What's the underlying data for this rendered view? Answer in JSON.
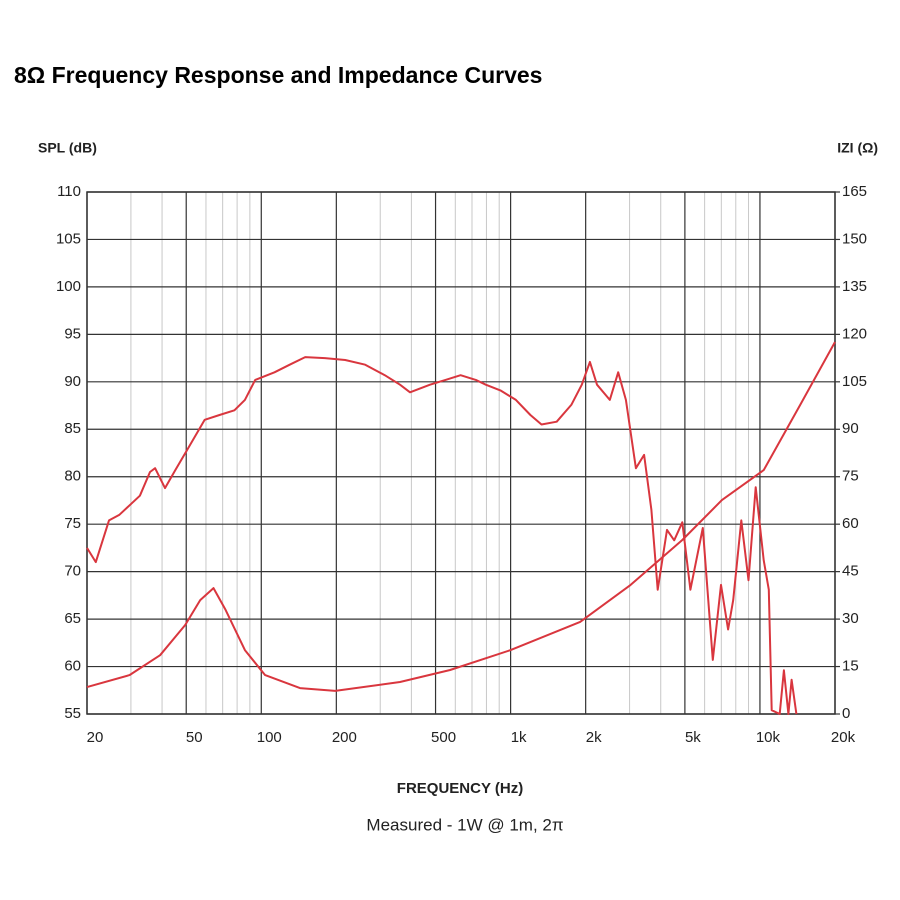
{
  "chart_data": {
    "type": "line",
    "title": "8Ω Frequency Response and Impedance Curves",
    "ylabel": "SPL (dB)",
    "y2label": "IZI (Ω)",
    "xlabel": "FREQUENCY (Hz)",
    "annotation": "Measured - 1W @ 1m, 2π",
    "xscale": "log",
    "grid": true,
    "xlim": [
      20,
      20000
    ],
    "xticks": [
      20,
      50,
      100,
      200,
      500,
      {
        "value": 1000,
        "label": "1k"
      },
      {
        "value": 2000,
        "label": "2k"
      },
      {
        "value": 5000,
        "label": "5k"
      },
      {
        "value": 10000,
        "label": "10k"
      },
      {
        "value": 20000,
        "label": "20k"
      }
    ],
    "xminor_ticks": [
      30,
      40,
      60,
      70,
      80,
      90,
      300,
      400,
      600,
      700,
      800,
      900,
      3000,
      4000,
      6000,
      7000,
      8000,
      9000
    ],
    "ylim": [
      55,
      110
    ],
    "yticks": [
      55,
      60,
      65,
      70,
      75,
      80,
      85,
      90,
      95,
      100,
      105,
      110
    ],
    "y2lim": [
      0,
      165
    ],
    "y2ticks": [
      0,
      15,
      30,
      45,
      60,
      75,
      90,
      105,
      120,
      135,
      150,
      165
    ],
    "series": [
      {
        "color": "#d9363e",
        "x": [
          20,
          21.7,
          24.5,
          27,
          32.6,
          35.8,
          37.5,
          41.1,
          45.2,
          51.7,
          59.3,
          68,
          78,
          86,
          94.5,
          113,
          130,
          150,
          180,
          217,
          261,
          313,
          360,
          395,
          475,
          548,
          630,
          725,
          795,
          910,
          1050,
          1200,
          1330,
          1530,
          1755,
          1930,
          2080,
          2220,
          2500,
          2700,
          2900,
          3180,
          3430,
          3670,
          3890,
          4240,
          4530,
          4880,
          5260,
          5900,
          6470,
          6980,
          7450,
          7810,
          8420,
          9000,
          9620,
          10350,
          10850,
          11150,
          12000,
          12480,
          13000,
          13400,
          14000
        ],
        "values": [
          72.5,
          71,
          75.4,
          76,
          78,
          80.5,
          80.9,
          78.8,
          80.7,
          83.3,
          86,
          86.5,
          87,
          88.1,
          90.2,
          91,
          91.8,
          92.6,
          92.5,
          92.3,
          91.8,
          90.7,
          89.7,
          88.9,
          89.7,
          90.2,
          90.7,
          90.2,
          89.7,
          89.1,
          88.1,
          86.5,
          85.5,
          85.8,
          87.6,
          89.7,
          92.1,
          89.7,
          88.1,
          91,
          88.1,
          80.9,
          82.3,
          76.5,
          68.1,
          74.4,
          73.3,
          75.2,
          68.1,
          74.6,
          60.7,
          68.6,
          63.9,
          67,
          75.4,
          69.1,
          78.9,
          71.2,
          68.1,
          55.4,
          55,
          59.6,
          55,
          58.6,
          55
        ]
      },
      {
        "color": "#d9363e",
        "axis": "y2",
        "x": [
          20,
          29.6,
          39.3,
          49.5,
          56.9,
          64.3,
          71.9,
          86,
          103.6,
          143,
          198,
          360,
          572,
          1000,
          1900,
          3030,
          4880,
          7040,
          10350,
          14500,
          20000
        ],
        "values": [
          8.5,
          12.3,
          18.6,
          28.1,
          36,
          39.8,
          32.9,
          20.2,
          12.3,
          8.2,
          7.3,
          10.1,
          13.9,
          20.2,
          29.1,
          40.8,
          55,
          67.6,
          77.1,
          97.7,
          117.6
        ]
      }
    ]
  }
}
